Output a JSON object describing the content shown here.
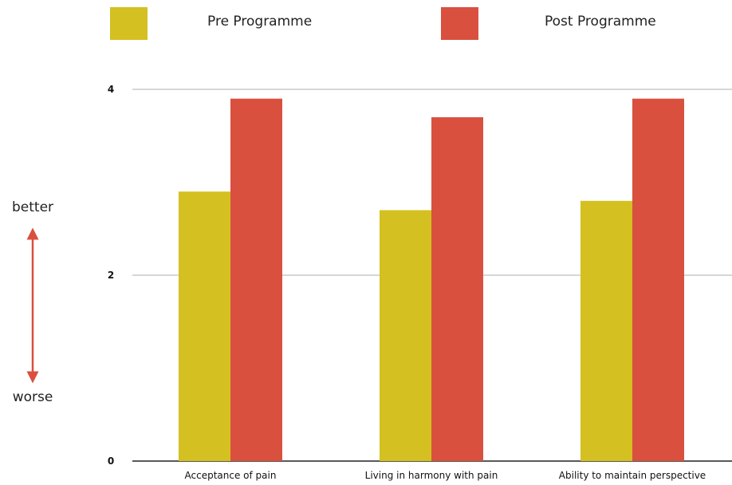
{
  "chart_data": {
    "type": "bar",
    "categories": [
      "Acceptance of pain",
      "Living in harmony with pain",
      "Ability to maintain perspective"
    ],
    "series": [
      {
        "name": "Pre Programme",
        "values": [
          2.9,
          2.7,
          2.8
        ],
        "color": "#d4c020"
      },
      {
        "name": "Post Programme",
        "values": [
          3.9,
          3.7,
          3.9
        ],
        "color": "#d9503f"
      }
    ],
    "yticks": [
      0,
      2,
      4
    ],
    "ylim": [
      0,
      4.2
    ],
    "grid": true,
    "legend_position": "top",
    "y_annotation": {
      "top": "better",
      "bottom": "worse",
      "arrow_color": "#d9503f"
    }
  }
}
